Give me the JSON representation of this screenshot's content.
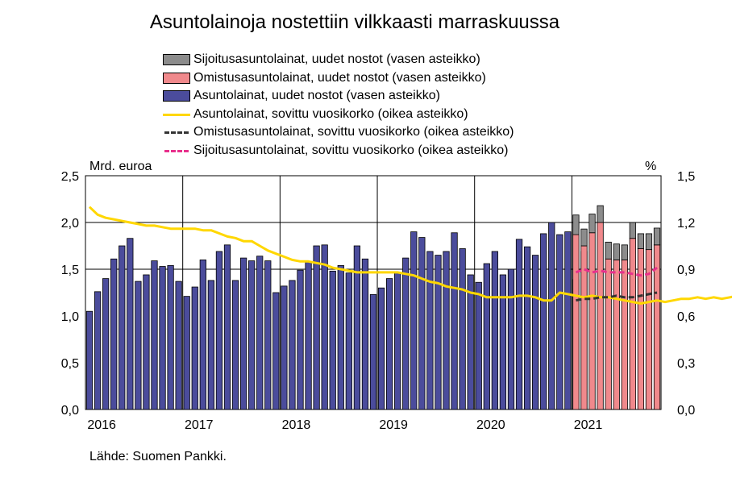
{
  "chart_data": {
    "type": "bar",
    "title": "Asuntolainoja nostettiin vilkkaasti marraskuussa",
    "left_axis_unit": "Mrd. euroa",
    "right_axis_unit": "%",
    "source": "Lähde: Suomen Pankki.",
    "left_ylim": [
      0,
      2.5
    ],
    "right_ylim": [
      0,
      1.5
    ],
    "left_ticks": [
      "0,0",
      "0,5",
      "1,0",
      "1,5",
      "2,0",
      "2,5"
    ],
    "right_ticks": [
      "0,0",
      "0,3",
      "0,6",
      "0,9",
      "1,2",
      "1,5"
    ],
    "x_ticks": [
      "2016",
      "2017",
      "2018",
      "2019",
      "2020",
      "2021"
    ],
    "grid": "vertical at year boundaries, horizontal at 2,0 and 1,5",
    "legend_placement": "top",
    "months_start": "2016-01",
    "bar_series": [
      {
        "name": "Sijoitusasuntolainat, uudet nostot (vasen asteikko)",
        "color": "#8c8c8c",
        "start": "2021-01",
        "values": [
          0.21,
          0.18,
          0.2,
          0.18,
          0.18,
          0.17,
          0.16,
          0.17,
          0.16,
          0.17,
          0.18
        ]
      },
      {
        "name": "Omistusasuntolainat, uudet nostot (vasen asteikko)",
        "color": "#f0898c",
        "start": "2021-01",
        "values": [
          1.87,
          1.75,
          1.89,
          2.0,
          1.61,
          1.6,
          1.6,
          1.83,
          1.72,
          1.71,
          1.76
        ]
      },
      {
        "name": "Asuntolainat, uudet nostot (vasen asteikko)",
        "color": "#4b4c9c",
        "start": "2016-01",
        "values": [
          1.05,
          1.26,
          1.4,
          1.61,
          1.75,
          1.83,
          1.37,
          1.44,
          1.59,
          1.53,
          1.54,
          1.37,
          1.21,
          1.31,
          1.6,
          1.38,
          1.69,
          1.76,
          1.38,
          1.62,
          1.59,
          1.64,
          1.59,
          1.25,
          1.32,
          1.38,
          1.49,
          1.58,
          1.75,
          1.76,
          1.48,
          1.54,
          1.46,
          1.75,
          1.61,
          1.23,
          1.3,
          1.4,
          1.46,
          1.62,
          1.9,
          1.84,
          1.69,
          1.65,
          1.69,
          1.89,
          1.72,
          1.44,
          1.36,
          1.56,
          1.69,
          1.44,
          1.5,
          1.82,
          1.74,
          1.65,
          1.88,
          2.0,
          1.87,
          1.9,
          1.39,
          1.69
        ]
      }
    ],
    "line_series": [
      {
        "name": "Asuntolainat, sovittu vuosikorko (oikea asteikko)",
        "color": "#ffd700",
        "style": "solid",
        "start": "2016-01",
        "values": [
          1.3,
          1.25,
          1.23,
          1.22,
          1.21,
          1.2,
          1.19,
          1.18,
          1.18,
          1.17,
          1.16,
          1.16,
          1.16,
          1.16,
          1.15,
          1.15,
          1.13,
          1.11,
          1.1,
          1.08,
          1.08,
          1.05,
          1.02,
          1.0,
          0.98,
          0.96,
          0.95,
          0.95,
          0.94,
          0.93,
          0.91,
          0.9,
          0.89,
          0.88,
          0.88,
          0.88,
          0.88,
          0.88,
          0.88,
          0.87,
          0.86,
          0.84,
          0.82,
          0.81,
          0.79,
          0.78,
          0.77,
          0.75,
          0.74,
          0.72,
          0.72,
          0.72,
          0.72,
          0.73,
          0.73,
          0.72,
          0.7,
          0.7,
          0.75,
          0.74,
          0.73,
          0.72,
          0.73,
          0.72,
          0.72,
          0.71,
          0.7,
          0.69,
          0.68,
          0.69,
          0.7,
          0.69,
          0.7,
          0.71,
          0.71,
          0.72,
          0.71,
          0.72,
          0.71,
          0.72,
          0.73,
          0.72,
          0.72
        ]
      },
      {
        "name": "Omistusasuntolainat, sovittu vuosikorko (oikea asteikko)",
        "color": "#333333",
        "style": "dashed",
        "start": "2021-01",
        "values": [
          0.7,
          0.71,
          0.71,
          0.72,
          0.72,
          0.73,
          0.72,
          0.72,
          0.73,
          0.74,
          0.75
        ]
      },
      {
        "name": "Sijoitusasuntolainat, sovittu vuosikorko (oikea asteikko)",
        "color": "#e8308c",
        "style": "dashed",
        "start": "2021-01",
        "values": [
          0.88,
          0.9,
          0.88,
          0.89,
          0.88,
          0.88,
          0.88,
          0.87,
          0.86,
          0.87,
          0.91
        ]
      }
    ]
  }
}
